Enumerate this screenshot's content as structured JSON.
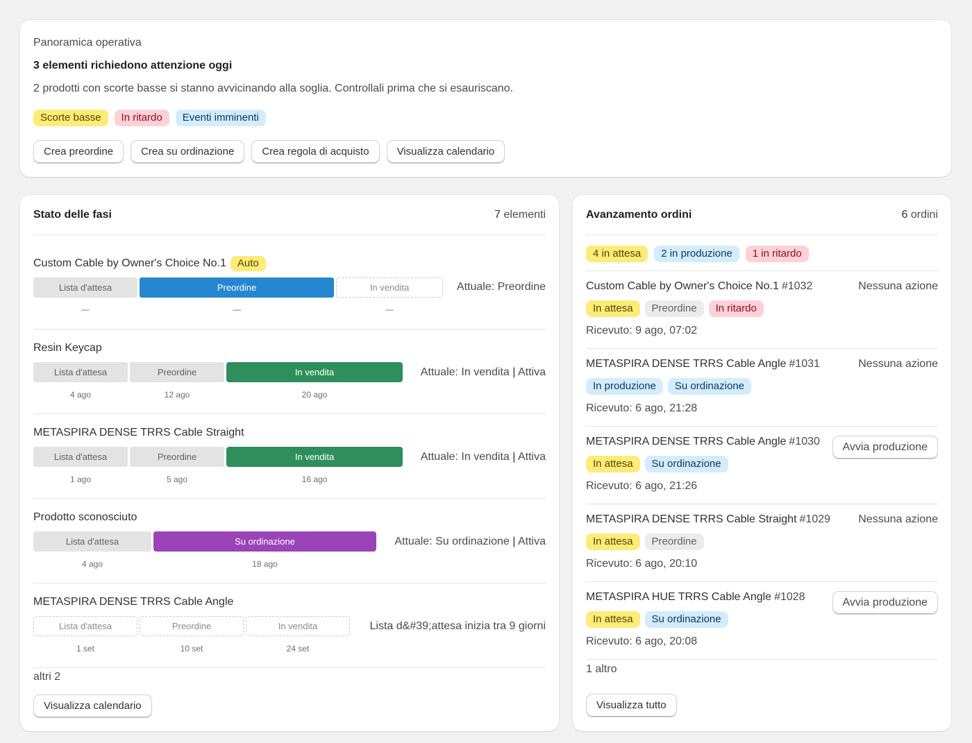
{
  "overview": {
    "overline": "Panoramica operativa",
    "headline": "3 elementi richiedono attenzione oggi",
    "description": "2 prodotti con scorte basse si stanno avvicinando alla soglia. Controllali prima che si esauriscano.",
    "badges": [
      "Scorte basse",
      "In ritardo",
      "Eventi imminenti"
    ],
    "actions": [
      "Crea preordine",
      "Crea su ordinazione",
      "Crea regola di acquisto",
      "Visualizza calendario"
    ]
  },
  "phases": {
    "title": "Stato delle fasi",
    "count_num": "7",
    "count_label": " elementi",
    "items": [
      {
        "name": "Custom Cable by Owner's Choice No.1",
        "badge": "Auto",
        "segments": [
          "Lista d'attesa",
          "Preordine",
          "In vendita"
        ],
        "dates": [
          "—",
          "—",
          "—"
        ],
        "current": "Attuale: Preordine"
      },
      {
        "name": "Resin Keycap",
        "segments": [
          "Lista d'attesa",
          "Preordine",
          "In vendita"
        ],
        "dates": [
          "4 ago",
          "12 ago",
          "20 ago"
        ],
        "current": "Attuale: In vendita",
        "status": "Attiva"
      },
      {
        "name": "METASPIRA DENSE TRRS Cable Straight",
        "segments": [
          "Lista d'attesa",
          "Preordine",
          "In vendita"
        ],
        "dates": [
          "1 ago",
          "5 ago",
          "16 ago"
        ],
        "current": "Attuale: In vendita",
        "status": "Attiva"
      },
      {
        "name": "Prodotto sconosciuto",
        "segments": [
          "Lista d'attesa",
          "Su ordinazione"
        ],
        "dates": [
          "4 ago",
          "18 ago"
        ],
        "current": "Attuale: Su ordinazione",
        "status": "Attiva"
      },
      {
        "name": "METASPIRA DENSE TRRS Cable Angle",
        "segments": [
          "Lista d'attesa",
          "Preordine",
          "In vendita"
        ],
        "dates": [
          "1 set",
          "10 set",
          "24 set"
        ],
        "current": "Lista d&#39;attesa inizia tra 9 giorni"
      }
    ],
    "more": "altri 2",
    "button": "Visualizza calendario"
  },
  "orders": {
    "title": "Avanzamento ordini",
    "count_num": "6",
    "count_label": " ordini",
    "summary": [
      "4 in attesa",
      "2 in produzione",
      "1 in ritardo"
    ],
    "items": [
      {
        "name": "Custom Cable by Owner's Choice No.1",
        "number": "#1032",
        "action": "Nessuna azione",
        "tags": [
          "In attesa",
          "Preordine",
          "In ritardo"
        ],
        "received": "Ricevuto: 9 ago, 07:02"
      },
      {
        "name": "METASPIRA DENSE TRRS Cable Angle",
        "number": "#1031",
        "action": "Nessuna azione",
        "tags": [
          "In produzione",
          "Su ordinazione"
        ],
        "received": "Ricevuto: 6 ago, 21:28"
      },
      {
        "name": "METASPIRA DENSE TRRS Cable Angle",
        "number": "#1030",
        "action": "Avvia produzione",
        "tags": [
          "In attesa",
          "Su ordinazione"
        ],
        "received": "Ricevuto: 6 ago, 21:26"
      },
      {
        "name": "METASPIRA DENSE TRRS Cable Straight",
        "number": "#1029",
        "action": "Nessuna azione",
        "tags": [
          "In attesa",
          "Preordine"
        ],
        "received": "Ricevuto: 6 ago, 20:10"
      },
      {
        "name": "METASPIRA HUE TRRS Cable Angle",
        "number": "#1028",
        "action": "Avvia produzione",
        "tags": [
          "In attesa",
          "Su ordinazione"
        ],
        "received": "Ricevuto: 6 ago, 20:08"
      }
    ],
    "more": "1 altro",
    "button": "Visualizza tutto"
  },
  "colors": {
    "preorder": "#2587cf",
    "on_sale": "#2e8f5c",
    "made_to_order": "#9b43b8",
    "badge_yellow": "#ffeb78",
    "badge_red": "#fed1d7",
    "badge_blue": "#d5ebff"
  }
}
